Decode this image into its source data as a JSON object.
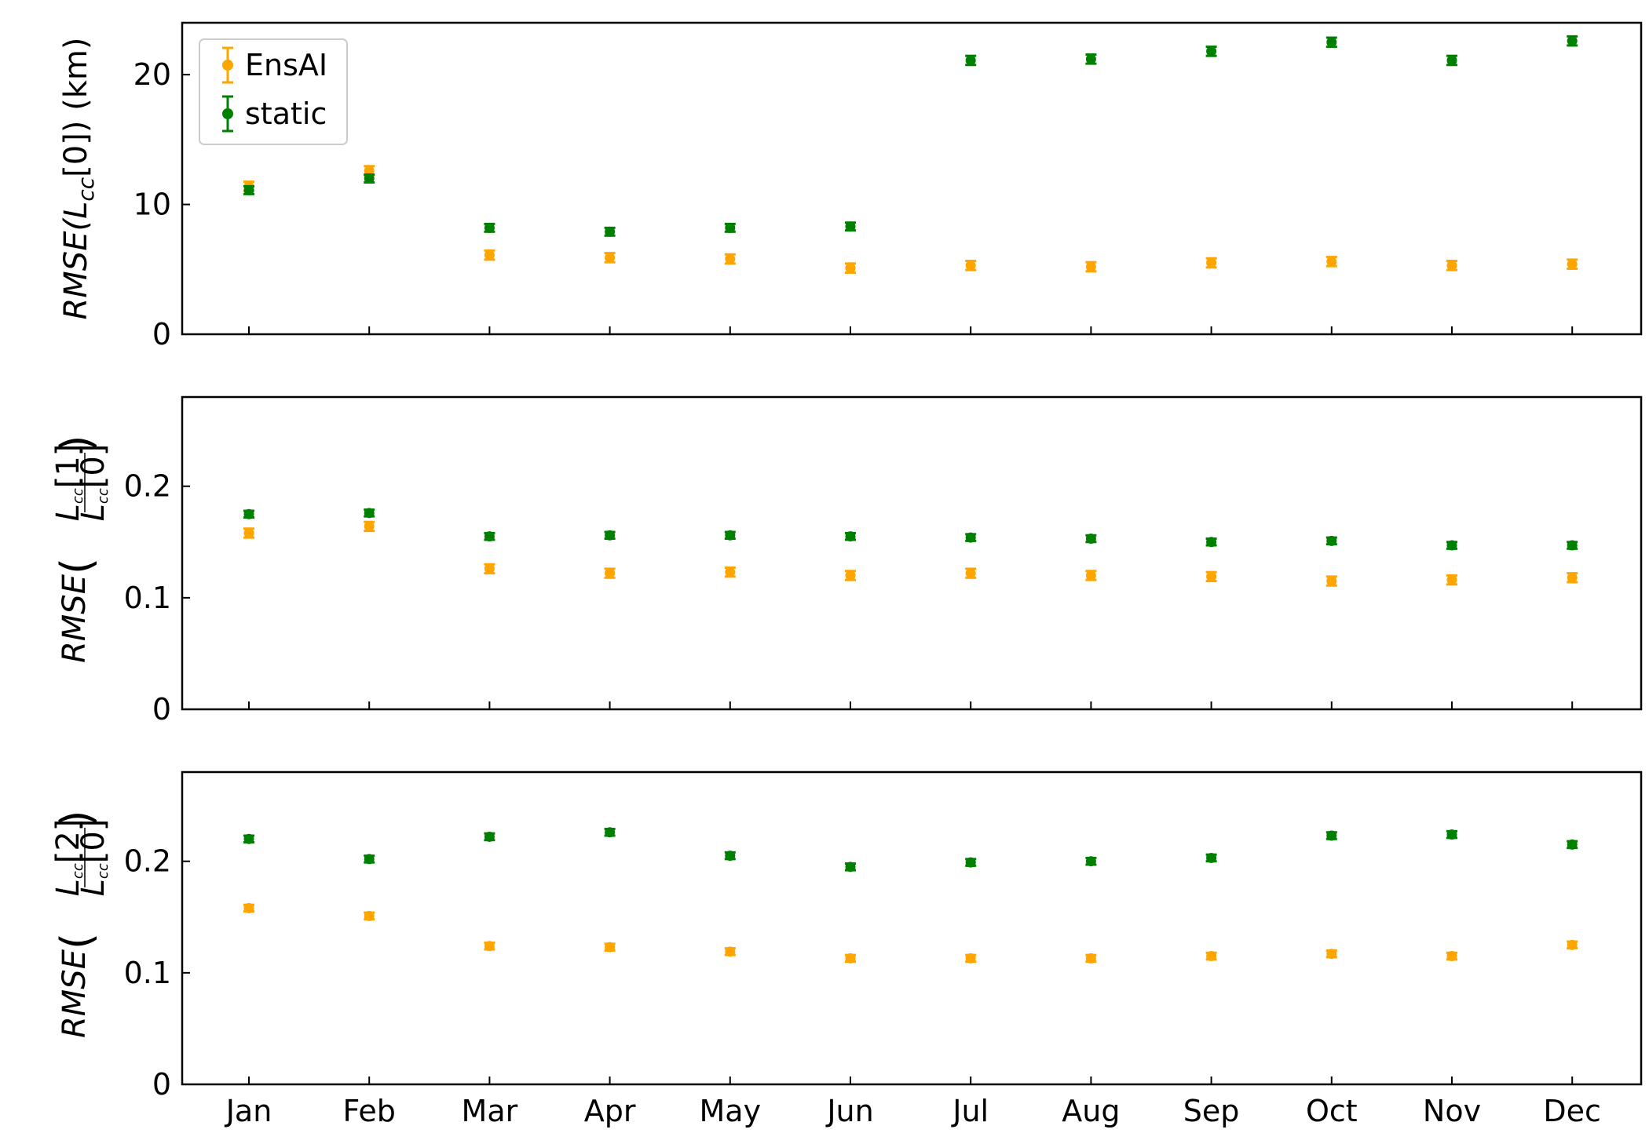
{
  "chart_data": {
    "type": "scatter",
    "subtype": "errorbar",
    "categories": [
      "Jan",
      "Feb",
      "Mar",
      "Apr",
      "May",
      "Jun",
      "Jul",
      "Aug",
      "Sep",
      "Oct",
      "Nov",
      "Dec"
    ],
    "legend": {
      "placement": "top-left",
      "entries": [
        "EnsAI",
        "static"
      ]
    },
    "colors": {
      "EnsAI": "#ffa500",
      "static": "#008000"
    },
    "grid": false,
    "panels": [
      {
        "ylabel_main": "RMSE(",
        "ylabel_sub": "cc",
        "ylabel_tail": "[0]) (km)",
        "ylim": [
          0,
          24
        ],
        "yticks": [
          0,
          10,
          20
        ],
        "ytick_labels": [
          "0",
          "10",
          "20"
        ],
        "series": [
          {
            "name": "EnsAI",
            "values": [
              11.4,
              12.6,
              6.1,
              5.9,
              5.8,
              5.1,
              5.3,
              5.2,
              5.5,
              5.6,
              5.3,
              5.4
            ],
            "errors": [
              0.35,
              0.35,
              0.35,
              0.35,
              0.35,
              0.35,
              0.35,
              0.35,
              0.35,
              0.35,
              0.35,
              0.35
            ]
          },
          {
            "name": "static",
            "values": [
              11.1,
              12.0,
              8.2,
              7.9,
              8.2,
              8.3,
              21.1,
              21.2,
              21.8,
              22.5,
              21.1,
              22.6
            ],
            "errors": [
              0.3,
              0.3,
              0.3,
              0.3,
              0.3,
              0.3,
              0.35,
              0.35,
              0.35,
              0.35,
              0.35,
              0.35
            ]
          }
        ]
      },
      {
        "ylabel_main": "RMSE",
        "frac_num": "[1]",
        "frac_den": "[0]",
        "ylim": [
          0,
          0.28
        ],
        "yticks": [
          0,
          0.1,
          0.2
        ],
        "ytick_labels": [
          "0",
          "0.1",
          "0.2"
        ],
        "series": [
          {
            "name": "EnsAI",
            "values": [
              0.158,
              0.164,
              0.126,
              0.122,
              0.123,
              0.12,
              0.122,
              0.12,
              0.119,
              0.115,
              0.116,
              0.118
            ],
            "errors": [
              0.004,
              0.004,
              0.004,
              0.004,
              0.004,
              0.004,
              0.004,
              0.004,
              0.004,
              0.004,
              0.004,
              0.004
            ]
          },
          {
            "name": "static",
            "values": [
              0.175,
              0.176,
              0.155,
              0.156,
              0.156,
              0.155,
              0.154,
              0.153,
              0.15,
              0.151,
              0.147,
              0.147
            ],
            "errors": [
              0.003,
              0.003,
              0.003,
              0.003,
              0.003,
              0.003,
              0.003,
              0.003,
              0.003,
              0.003,
              0.003,
              0.003
            ]
          }
        ]
      },
      {
        "ylabel_main": "RMSE",
        "frac_num": "[2]",
        "frac_den": "[0]",
        "ylim": [
          0,
          0.28
        ],
        "yticks": [
          0,
          0.1,
          0.2
        ],
        "ytick_labels": [
          "0",
          "0.1",
          "0.2"
        ],
        "series": [
          {
            "name": "EnsAI",
            "values": [
              0.158,
              0.151,
              0.124,
              0.123,
              0.119,
              0.113,
              0.113,
              0.113,
              0.115,
              0.117,
              0.115,
              0.125
            ],
            "errors": [
              0.003,
              0.003,
              0.003,
              0.003,
              0.003,
              0.003,
              0.003,
              0.003,
              0.003,
              0.003,
              0.003,
              0.003
            ]
          },
          {
            "name": "static",
            "values": [
              0.22,
              0.202,
              0.222,
              0.226,
              0.205,
              0.195,
              0.199,
              0.2,
              0.203,
              0.223,
              0.224,
              0.215
            ],
            "errors": [
              0.003,
              0.003,
              0.003,
              0.003,
              0.003,
              0.003,
              0.003,
              0.003,
              0.003,
              0.003,
              0.003,
              0.003
            ]
          }
        ]
      }
    ]
  }
}
